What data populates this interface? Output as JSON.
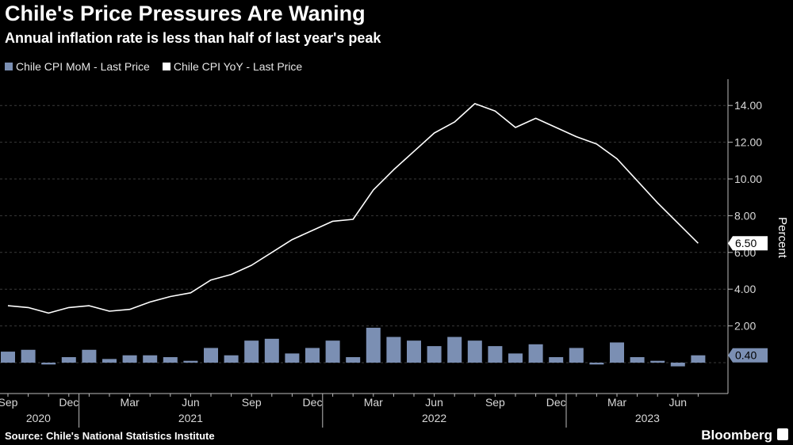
{
  "header": {
    "title": "Chile's Price Pressures Are Waning",
    "subtitle": "Annual inflation rate is less than half of last year's peak"
  },
  "legend": {
    "mom_label": "Chile CPI MoM - Last Price",
    "yoy_label": "Chile CPI YoY - Last Price"
  },
  "footer": {
    "source": "Source: Chile's National Statistics Institute",
    "brand": "Bloomberg"
  },
  "colors": {
    "background": "#000000",
    "bar": "#7b8fb3",
    "line": "#ffffff",
    "grid": "#3a3a3a"
  },
  "chart_data": {
    "type": "bar+line",
    "title": "Chile's Price Pressures Are Waning",
    "subtitle": "Annual inflation rate is less than half of last year's peak",
    "ylabel": "Percent",
    "ylim": [
      -1.5,
      15
    ],
    "yticks": [
      2,
      4,
      6,
      8,
      10,
      12,
      14
    ],
    "ytick_labels": [
      "2.00",
      "4.00",
      "6.00",
      "8.00",
      "10.00",
      "12.00",
      "14.00"
    ],
    "grid": "horizontal dashed",
    "months": [
      "2020-09",
      "2020-10",
      "2020-11",
      "2020-12",
      "2021-01",
      "2021-02",
      "2021-03",
      "2021-04",
      "2021-05",
      "2021-06",
      "2021-07",
      "2021-08",
      "2021-09",
      "2021-10",
      "2021-11",
      "2021-12",
      "2022-01",
      "2022-02",
      "2022-03",
      "2022-04",
      "2022-05",
      "2022-06",
      "2022-07",
      "2022-08",
      "2022-09",
      "2022-10",
      "2022-11",
      "2022-12",
      "2023-01",
      "2023-02",
      "2023-03",
      "2023-04",
      "2023-05",
      "2023-06",
      "2023-07"
    ],
    "x_month_labels": [
      {
        "i": 0,
        "label": "Sep"
      },
      {
        "i": 3,
        "label": "Dec"
      },
      {
        "i": 6,
        "label": "Mar"
      },
      {
        "i": 9,
        "label": "Jun"
      },
      {
        "i": 12,
        "label": "Sep"
      },
      {
        "i": 15,
        "label": "Dec"
      },
      {
        "i": 18,
        "label": "Mar"
      },
      {
        "i": 21,
        "label": "Jun"
      },
      {
        "i": 24,
        "label": "Sep"
      },
      {
        "i": 27,
        "label": "Dec"
      },
      {
        "i": 30,
        "label": "Mar"
      },
      {
        "i": 33,
        "label": "Jun"
      }
    ],
    "x_year_labels": [
      {
        "i": 1.5,
        "label": "2020"
      },
      {
        "i": 9,
        "label": "2021"
      },
      {
        "i": 21,
        "label": "2022"
      },
      {
        "i": 31.5,
        "label": "2023"
      }
    ],
    "x_year_dividers": [
      3.5,
      15.5,
      27.5
    ],
    "series": [
      {
        "name": "Chile CPI MoM - Last Price",
        "kind": "bar",
        "values": [
          0.6,
          0.7,
          -0.1,
          0.3,
          0.7,
          0.2,
          0.4,
          0.4,
          0.3,
          0.1,
          0.8,
          0.4,
          1.2,
          1.3,
          0.5,
          0.8,
          1.2,
          0.3,
          1.9,
          1.4,
          1.2,
          0.9,
          1.4,
          1.2,
          0.9,
          0.5,
          1.0,
          0.3,
          0.8,
          -0.1,
          1.1,
          0.3,
          0.1,
          -0.2,
          0.4
        ]
      },
      {
        "name": "Chile CPI YoY - Last Price",
        "kind": "line",
        "values": [
          3.1,
          3.0,
          2.7,
          3.0,
          3.1,
          2.8,
          2.9,
          3.3,
          3.6,
          3.8,
          4.5,
          4.8,
          5.3,
          6.0,
          6.7,
          7.2,
          7.7,
          7.8,
          9.4,
          10.5,
          11.5,
          12.5,
          13.1,
          14.1,
          13.7,
          12.8,
          13.3,
          12.8,
          12.3,
          11.9,
          11.1,
          9.9,
          8.7,
          7.6,
          6.5
        ]
      }
    ],
    "last_value_labels": {
      "yoy": "6.50",
      "mom": "0.40"
    }
  }
}
